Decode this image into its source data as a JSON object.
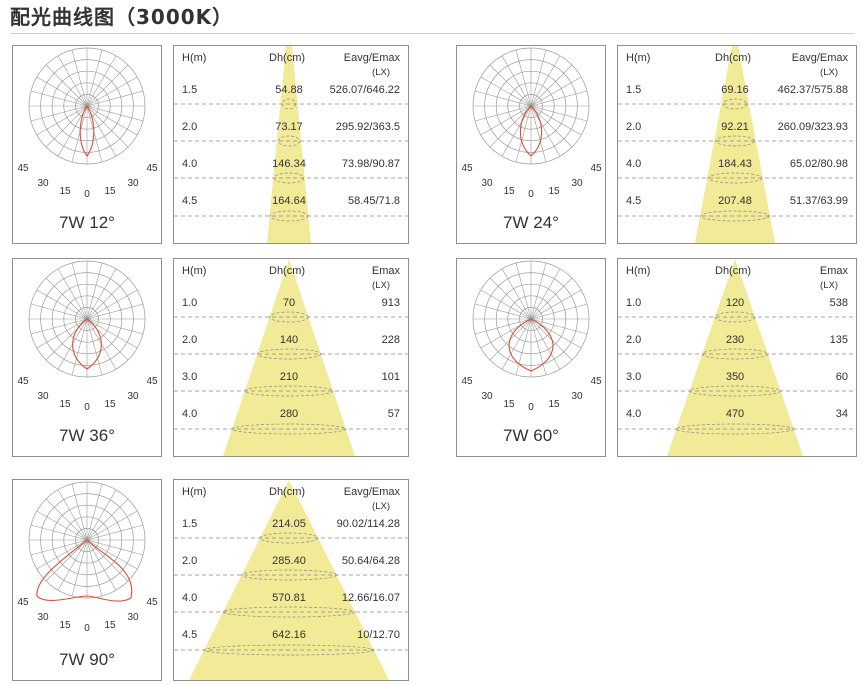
{
  "page_title": "配光曲线图（3000K）",
  "polar_ticks": {
    "left_outer": "45",
    "left_mid": "30",
    "left_inner": "15",
    "center": "0",
    "right_inner": "15",
    "right_mid": "30",
    "right_outer": "45"
  },
  "panels": [
    {
      "label": "7W 12°",
      "beam_deg": 12,
      "headers": {
        "h": "H(m)",
        "dh": "Dh(cm)",
        "e": "Eavg/Emax",
        "e_unit": "(LX)"
      },
      "rows": [
        {
          "h": "1.5",
          "dh": "54.88",
          "e": "526.07/646.22"
        },
        {
          "h": "2.0",
          "dh": "73.17",
          "e": "295.92/363.5"
        },
        {
          "h": "4.0",
          "dh": "146.34",
          "e": "73.98/90.87"
        },
        {
          "h": "4.5",
          "dh": "164.64",
          "e": "58.45/71.8"
        }
      ]
    },
    {
      "label": "7W 24°",
      "beam_deg": 24,
      "headers": {
        "h": "H(m)",
        "dh": "Dh(cm)",
        "e": "Eavg/Emax",
        "e_unit": "(LX)"
      },
      "rows": [
        {
          "h": "1.5",
          "dh": "69.16",
          "e": "462.37/575.88"
        },
        {
          "h": "2.0",
          "dh": "92.21",
          "e": "260.09/323.93"
        },
        {
          "h": "4.0",
          "dh": "184.43",
          "e": "65.02/80.98"
        },
        {
          "h": "4.5",
          "dh": "207.48",
          "e": "51.37/63.99"
        }
      ]
    },
    {
      "label": "7W 36°",
      "beam_deg": 36,
      "headers": {
        "h": "H(m)",
        "dh": "Dh(cm)",
        "e": "Emax",
        "e_unit": "(LX)"
      },
      "rows": [
        {
          "h": "1.0",
          "dh": "70",
          "e": "913"
        },
        {
          "h": "2.0",
          "dh": "140",
          "e": "228"
        },
        {
          "h": "3.0",
          "dh": "210",
          "e": "101"
        },
        {
          "h": "4.0",
          "dh": "280",
          "e": "57"
        }
      ]
    },
    {
      "label": "7W 60°",
      "beam_deg": 60,
      "headers": {
        "h": "H(m)",
        "dh": "Dh(cm)",
        "e": "Emax",
        "e_unit": "(LX)"
      },
      "rows": [
        {
          "h": "1.0",
          "dh": "120",
          "e": "538"
        },
        {
          "h": "2.0",
          "dh": "230",
          "e": "135"
        },
        {
          "h": "3.0",
          "dh": "350",
          "e": "60"
        },
        {
          "h": "4.0",
          "dh": "470",
          "e": "34"
        }
      ]
    },
    {
      "label": "7W 90°",
      "beam_deg": 90,
      "headers": {
        "h": "H(m)",
        "dh": "Dh(cm)",
        "e": "Eavg/Emax",
        "e_unit": "(LX)"
      },
      "rows": [
        {
          "h": "1.5",
          "dh": "214.05",
          "e": "90.02/114.28"
        },
        {
          "h": "2.0",
          "dh": "285.40",
          "e": "50.64/64.28"
        },
        {
          "h": "4.0",
          "dh": "570.81",
          "e": "12.66/16.07"
        },
        {
          "h": "4.5",
          "dh": "642.16",
          "e": "10/12.70"
        }
      ]
    }
  ],
  "colors": {
    "curve": "#d94f3a",
    "beam": "#f1ea96",
    "grid": "#9a9a9a",
    "dash": "#8a8a8a",
    "border": "#8f8f8f"
  }
}
